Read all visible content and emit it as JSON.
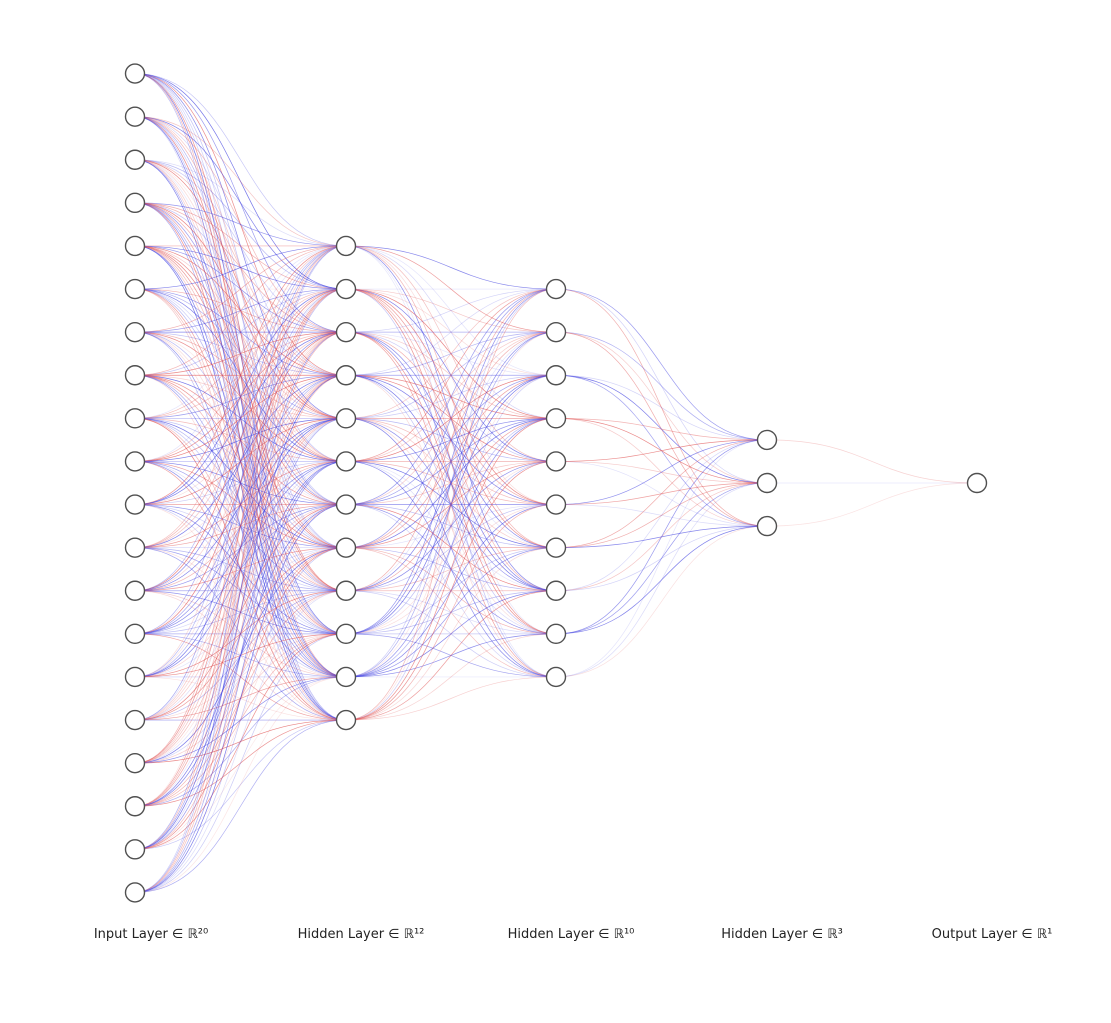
{
  "colors": {
    "positive_weight": "#e05050",
    "negative_weight": "#4040e0",
    "node_stroke": "#505050",
    "node_fill": "#ffffff",
    "label_text": "#222222",
    "background": "#ffffff"
  },
  "layers": [
    {
      "label": "Input Layer ∈ ℝ²⁰",
      "neurons": 20
    },
    {
      "label": "Hidden Layer ∈ ℝ¹²",
      "neurons": 12
    },
    {
      "label": "Hidden Layer ∈ ℝ¹⁰",
      "neurons": 10
    },
    {
      "label": "Hidden Layer ∈ ℝ³",
      "neurons": 3
    },
    {
      "label": "Output Layer ∈ ℝ¹",
      "neurons": 1
    }
  ]
}
